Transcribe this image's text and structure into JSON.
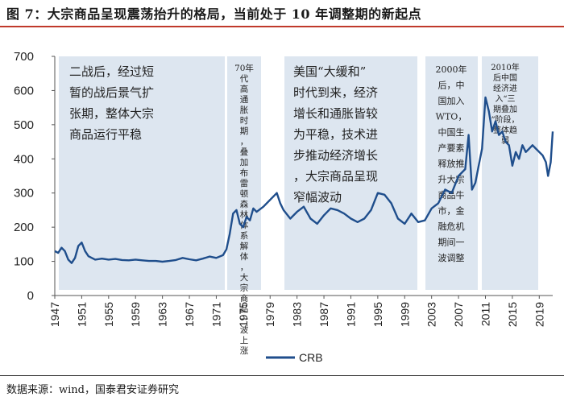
{
  "figure": {
    "title": "图 7：大宗商品呈现震荡抬升的格局，当前处于 10 年调整期的新起点",
    "source": "数据来源：wind，国泰君安证券研究"
  },
  "colors": {
    "line": "#1f4e8c",
    "band": "#dde6f0",
    "highlight_text": "#e0201b",
    "title_rule": "#c0392b"
  },
  "chart_data": {
    "type": "line",
    "title": "",
    "xlabel": "",
    "ylabel": "",
    "xlim": [
      1947,
      2021
    ],
    "ylim": [
      0,
      700
    ],
    "y_ticks": [
      0,
      100,
      200,
      300,
      400,
      500,
      600,
      700
    ],
    "x_ticks": [
      "1947",
      "1951",
      "1955",
      "1959",
      "1963",
      "1967",
      "1971",
      "1975",
      "1979",
      "1983",
      "1987",
      "1991",
      "1995",
      "1999",
      "2003",
      "2007",
      "2011",
      "2015",
      "2019"
    ],
    "legend": {
      "position": "bottom-center",
      "entries": [
        "CRB"
      ]
    },
    "grid": false,
    "series": [
      {
        "name": "CRB",
        "x": [
          1947,
          1947.5,
          1948,
          1948.5,
          1949,
          1949.5,
          1950,
          1950.5,
          1951,
          1951.5,
          1952,
          1953,
          1954,
          1955,
          1956,
          1957,
          1958,
          1959,
          1960,
          1961,
          1962,
          1963,
          1964,
          1965,
          1966,
          1967,
          1968,
          1969,
          1970,
          1971,
          1972,
          1972.5,
          1973,
          1973.5,
          1974,
          1974.5,
          1975,
          1975.5,
          1976,
          1976.5,
          1977,
          1978,
          1979,
          1980,
          1980.5,
          1981,
          1982,
          1983,
          1984,
          1985,
          1986,
          1987,
          1988,
          1989,
          1990,
          1991,
          1992,
          1993,
          1994,
          1995,
          1996,
          1997,
          1998,
          1999,
          2000,
          2001,
          2002,
          2003,
          2004,
          2005,
          2006,
          2007,
          2008,
          2008.5,
          2009,
          2009.5,
          2010,
          2010.5,
          2011,
          2011.5,
          2012,
          2012.5,
          2013,
          2013.5,
          2014,
          2014.5,
          2015,
          2015.5,
          2016,
          2016.5,
          2017,
          2017.5,
          2018,
          2018.5,
          2019,
          2019.5,
          2020,
          2020.3,
          2020.7,
          2021
        ],
        "values": [
          130,
          125,
          140,
          130,
          105,
          95,
          110,
          145,
          155,
          130,
          115,
          105,
          108,
          105,
          107,
          104,
          103,
          105,
          103,
          101,
          101,
          99,
          101,
          104,
          110,
          106,
          103,
          108,
          114,
          110,
          118,
          135,
          180,
          240,
          250,
          210,
          200,
          230,
          220,
          255,
          245,
          260,
          280,
          300,
          270,
          250,
          225,
          245,
          260,
          225,
          210,
          235,
          255,
          250,
          240,
          225,
          215,
          225,
          250,
          300,
          295,
          270,
          225,
          210,
          240,
          215,
          220,
          255,
          270,
          310,
          300,
          350,
          370,
          470,
          310,
          330,
          380,
          430,
          580,
          540,
          480,
          510,
          470,
          480,
          450,
          440,
          380,
          420,
          400,
          440,
          420,
          430,
          440,
          430,
          420,
          410,
          390,
          350,
          390,
          480
        ]
      }
    ]
  },
  "annotations": [
    {
      "text": "二战后，经过短暂的战后景气扩张期，整体大宗商品运行平稳"
    },
    {
      "text": "70年代高通胀时期，叠加布雷顿森林体系解体，大宗商品一波上涨"
    },
    {
      "text": "美国“大缓和”时代到来，经济增长和通胀皆较为平稳，技术进步推动经济增长，大宗商品呈现窄幅波动"
    },
    {
      "text": "2000年后，中国加入WTO，中国生产要素释放推升大宗商品牛市，金融危机期间一波调整"
    },
    {
      "text": "2010年后中国经济进入“三期叠加”阶段，整体趋弱"
    }
  ]
}
